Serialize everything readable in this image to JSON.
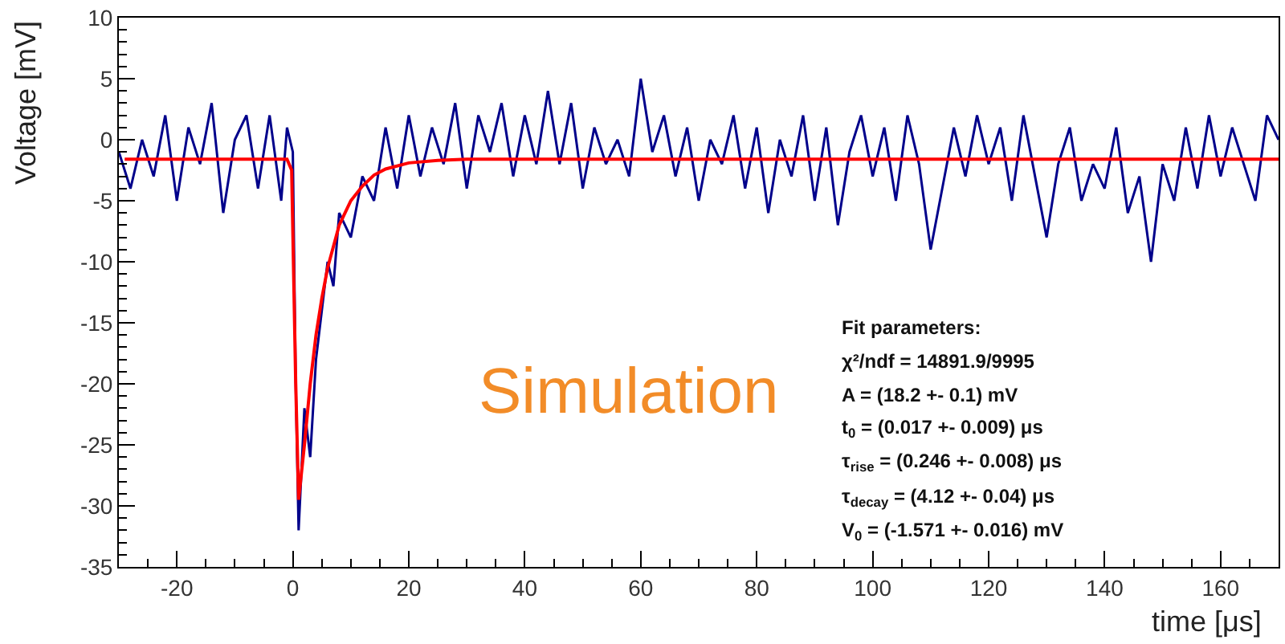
{
  "chart_data": {
    "type": "line",
    "xlabel": "time [μs]",
    "ylabel": "Voltage [mV]",
    "xlim": [
      -30,
      170
    ],
    "xticks": [
      -20,
      0,
      20,
      40,
      60,
      80,
      100,
      120,
      140,
      160
    ],
    "ylim": [
      -35,
      10
    ],
    "yticks": [
      -35,
      -30,
      -25,
      -20,
      -15,
      -10,
      -5,
      0,
      5,
      10
    ],
    "marker": "none",
    "line_style": "solid",
    "series": [
      {
        "color": "#00008b",
        "x": [
          -30,
          -28,
          -26,
          -24,
          -22,
          -20,
          -18,
          -16,
          -14,
          -12,
          -10,
          -8,
          -6,
          -4,
          -2,
          -1,
          0,
          0.5,
          1,
          2,
          3,
          4,
          5,
          6,
          7,
          8,
          10,
          12,
          14,
          16,
          18,
          20,
          22,
          24,
          26,
          28,
          30,
          32,
          34,
          36,
          38,
          40,
          42,
          44,
          46,
          48,
          50,
          52,
          54,
          56,
          58,
          60,
          62,
          64,
          66,
          68,
          70,
          72,
          74,
          76,
          78,
          80,
          82,
          84,
          86,
          88,
          90,
          92,
          94,
          96,
          98,
          100,
          102,
          104,
          106,
          108,
          110,
          112,
          114,
          116,
          118,
          120,
          122,
          124,
          126,
          128,
          130,
          132,
          134,
          136,
          138,
          140,
          142,
          144,
          146,
          148,
          150,
          152,
          154,
          156,
          158,
          160,
          162,
          164,
          166,
          168,
          170
        ],
        "values": [
          -1,
          -4,
          0,
          -3,
          2,
          -5,
          1,
          -2,
          3,
          -6,
          0,
          2,
          -4,
          2,
          -5,
          1,
          -1,
          -20,
          -32,
          -22,
          -26,
          -18,
          -14,
          -10,
          -12,
          -6,
          -8,
          -3,
          -5,
          1,
          -4,
          2,
          -3,
          1,
          -2,
          3,
          -4,
          2,
          -1,
          3,
          -3,
          2,
          -2,
          4,
          -2,
          3,
          -4,
          1,
          -2,
          0,
          -3,
          5,
          -1,
          2,
          -3,
          1,
          -5,
          0,
          -2,
          2,
          -4,
          1,
          -6,
          0,
          -3,
          2,
          -5,
          1,
          -7,
          -1,
          2,
          -3,
          1,
          -5,
          2,
          -2,
          -9,
          -4,
          1,
          -3,
          2,
          -2,
          1,
          -5,
          2,
          -3,
          -8,
          -2,
          1,
          -5,
          -2,
          -4,
          1,
          -6,
          -3,
          -10,
          -2,
          -5,
          1,
          -4,
          2,
          -3,
          1,
          -2,
          -5,
          2,
          0
        ]
      },
      {
        "color": "#ff0000",
        "x": [
          -29,
          -1,
          -0.2,
          0.5,
          1,
          2,
          3,
          4,
          5,
          6,
          8,
          10,
          12,
          14,
          16,
          20,
          25,
          30,
          170
        ],
        "values": [
          -1.6,
          -1.6,
          -2.5,
          -20,
          -29.5,
          -25,
          -20,
          -16,
          -13,
          -10.5,
          -7,
          -5,
          -3.8,
          -2.9,
          -2.4,
          -1.9,
          -1.7,
          -1.6,
          -1.6
        ]
      }
    ],
    "annotations": [
      "Simulation",
      "Fit parameters:",
      "χ²/ndf = 14891.9/9995",
      "A = (18.2 +- 0.1) mV",
      "t$_{0}$ = (0.017 +- 0.009) μs",
      "τ$_{rise}$ = (0.246 +- 0.008) μs",
      "τ$_{decay}$ = (4.12 +- 0.04) μs",
      "V$_{0}$ = (-1.571 +- 0.016) mV"
    ]
  }
}
